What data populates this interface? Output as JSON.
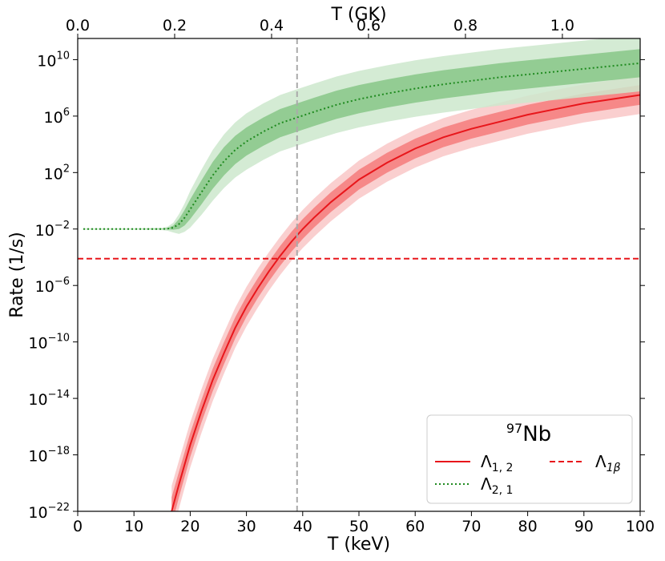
{
  "chart_data": {
    "type": "line",
    "xlabel": "T (keV)",
    "ylabel": "Rate (1/s)",
    "xlim": [
      0,
      100
    ],
    "ylim_log10": [
      -22,
      11.5
    ],
    "x_ticks": [
      "0",
      "10",
      "20",
      "30",
      "40",
      "50",
      "60",
      "70",
      "80",
      "90",
      "100"
    ],
    "y_ticks": [
      {
        "base": "10",
        "exp": "10",
        "log10": 10
      },
      {
        "base": "10",
        "exp": "6",
        "log10": 6
      },
      {
        "base": "10",
        "exp": "2",
        "log10": 2
      },
      {
        "base": "10",
        "exp": "−2",
        "log10": -2
      },
      {
        "base": "10",
        "exp": "−6",
        "log10": -6
      },
      {
        "base": "10",
        "exp": "−10",
        "log10": -10
      },
      {
        "base": "10",
        "exp": "−14",
        "log10": -14
      },
      {
        "base": "10",
        "exp": "−18",
        "log10": -18
      },
      {
        "base": "10",
        "exp": "−22",
        "log10": -22
      }
    ],
    "top_axis": {
      "label": "T (GK)",
      "ticks": [
        "0.0",
        "0.2",
        "0.4",
        "0.6",
        "0.8",
        "1.0"
      ],
      "tick_values_gk": [
        0.0,
        0.2,
        0.4,
        0.6,
        0.8,
        1.0
      ],
      "kev_per_gk": 86.17
    },
    "vline_x": 39,
    "legend": {
      "title_sup": "97",
      "title_main": "Nb",
      "location": "lower-right",
      "entries": [
        {
          "key": "l12",
          "main": "Λ",
          "sub": "1, 2",
          "style": "solid",
          "color": "#e8161b"
        },
        {
          "key": "l21",
          "main": "Λ",
          "sub": "2, 1",
          "style": "dotted",
          "color": "#1e8a1e"
        },
        {
          "key": "l1b",
          "main": "Λ",
          "sub": "1β",
          "style": "dashed",
          "color": "#e8161b"
        }
      ]
    },
    "series": [
      {
        "name": "Λ1,2",
        "color": "#e8161b",
        "style": "solid",
        "x": [
          16.7,
          18,
          20,
          22,
          24,
          26,
          28,
          30,
          32,
          34,
          36,
          38,
          40,
          42,
          45,
          50,
          55,
          60,
          65,
          70,
          75,
          80,
          85,
          90,
          95,
          100
        ],
        "log10_y": [
          -22.0,
          -20.1,
          -17.3,
          -14.9,
          -12.7,
          -10.8,
          -9.0,
          -7.5,
          -6.2,
          -5.0,
          -3.9,
          -2.9,
          -2.0,
          -1.2,
          -0.1,
          1.5,
          2.7,
          3.7,
          4.5,
          5.1,
          5.6,
          6.1,
          6.5,
          6.9,
          7.2,
          7.5
        ],
        "band_inner": [
          1.0,
          0.9,
          0.85,
          0.8,
          0.8,
          0.78,
          0.75,
          0.72,
          0.7,
          0.7,
          0.7,
          0.7,
          0.7,
          0.7,
          0.7,
          0.7,
          0.7,
          0.7,
          0.7,
          0.7,
          0.7,
          0.7,
          0.7,
          0.7,
          0.7,
          0.7
        ],
        "band_outer": [
          1.8,
          1.7,
          1.6,
          1.55,
          1.5,
          1.45,
          1.42,
          1.4,
          1.38,
          1.36,
          1.35,
          1.35,
          1.35,
          1.35,
          1.35,
          1.35,
          1.35,
          1.35,
          1.35,
          1.35,
          1.35,
          1.35,
          1.35,
          1.35,
          1.35,
          1.35
        ]
      },
      {
        "name": "Λ2,1",
        "color": "#1e8a1e",
        "style": "dotted",
        "x": [
          1,
          10,
          15,
          16,
          17,
          18,
          19,
          20,
          22,
          24,
          26,
          28,
          30,
          33,
          36,
          39,
          42,
          46,
          50,
          55,
          60,
          65,
          70,
          75,
          80,
          85,
          90,
          95,
          100
        ],
        "log10_y": [
          -2.0,
          -2.0,
          -2.0,
          -1.98,
          -1.9,
          -1.65,
          -1.2,
          -0.6,
          0.6,
          1.8,
          2.8,
          3.6,
          4.2,
          4.9,
          5.5,
          5.9,
          6.3,
          6.8,
          7.2,
          7.6,
          7.95,
          8.25,
          8.5,
          8.75,
          8.95,
          9.15,
          9.35,
          9.55,
          9.75
        ],
        "band_inner": [
          0.0,
          0.0,
          0.02,
          0.05,
          0.15,
          0.35,
          0.55,
          0.7,
          0.85,
          0.95,
          1.0,
          1.0,
          1.0,
          1.0,
          1.0,
          1.0,
          1.0,
          1.0,
          1.0,
          1.0,
          1.0,
          1.0,
          1.0,
          1.0,
          1.0,
          1.0,
          1.0,
          1.0,
          1.0
        ],
        "band_outer": [
          0.05,
          0.05,
          0.08,
          0.15,
          0.35,
          0.7,
          1.0,
          1.3,
          1.6,
          1.8,
          1.9,
          1.95,
          2.0,
          2.0,
          2.0,
          2.0,
          2.0,
          2.0,
          2.0,
          2.0,
          2.0,
          2.0,
          2.0,
          2.0,
          2.0,
          2.0,
          2.0,
          2.0,
          2.0
        ]
      },
      {
        "name": "Λ1β",
        "color": "#e8161b",
        "style": "dashed",
        "x": [
          0,
          100
        ],
        "log10_y": [
          -4.1,
          -4.1
        ]
      }
    ]
  }
}
